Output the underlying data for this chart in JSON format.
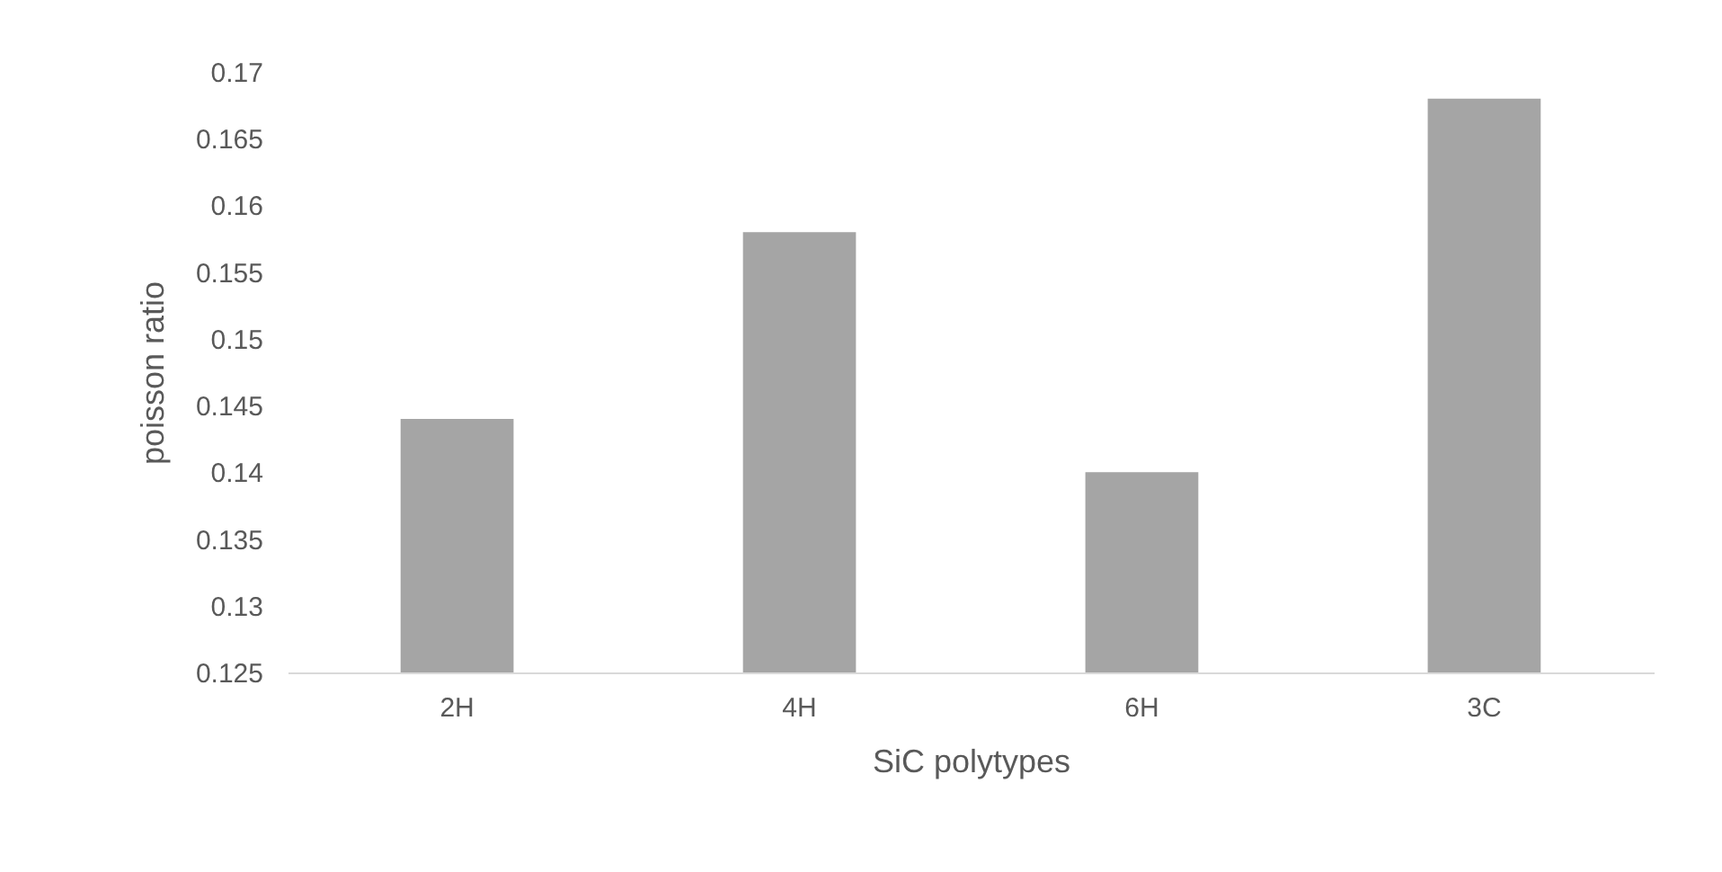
{
  "chart_data": {
    "type": "bar",
    "xlabel": "SiC polytypes",
    "ylabel": "poisson ratio",
    "categories": [
      "2H",
      "4H",
      "6H",
      "3C"
    ],
    "values": [
      0.144,
      0.158,
      0.14,
      0.168
    ],
    "color": "#a5a5a5",
    "ylim": [
      0.125,
      0.17
    ],
    "yticks": [
      0.125,
      0.13,
      0.135,
      0.14,
      0.145,
      0.15,
      0.155,
      0.16,
      0.165,
      0.17
    ],
    "grid": false
  }
}
